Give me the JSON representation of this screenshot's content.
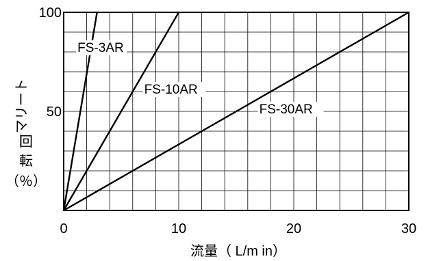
{
  "chart_data": {
    "type": "line",
    "xlabel": "流量（ L/m in）",
    "ylabel": "ーマリート回転（%）",
    "ylabel_parts": [
      "ーマリート",
      "回",
      "転",
      "（％）"
    ],
    "xlim": [
      0,
      30
    ],
    "ylim": [
      0,
      100
    ],
    "x_ticks": [
      "0",
      "10",
      "20",
      "30"
    ],
    "y_ticks": [
      "50",
      "100"
    ],
    "grid": true,
    "series": [
      {
        "name": "FS-3AR",
        "x": [
          0,
          2.9
        ],
        "y": [
          0,
          100
        ]
      },
      {
        "name": "FS-10AR",
        "x": [
          0,
          10
        ],
        "y": [
          0,
          100
        ]
      },
      {
        "name": "FS-30AR",
        "x": [
          0,
          30
        ],
        "y": [
          0,
          100
        ]
      }
    ]
  }
}
